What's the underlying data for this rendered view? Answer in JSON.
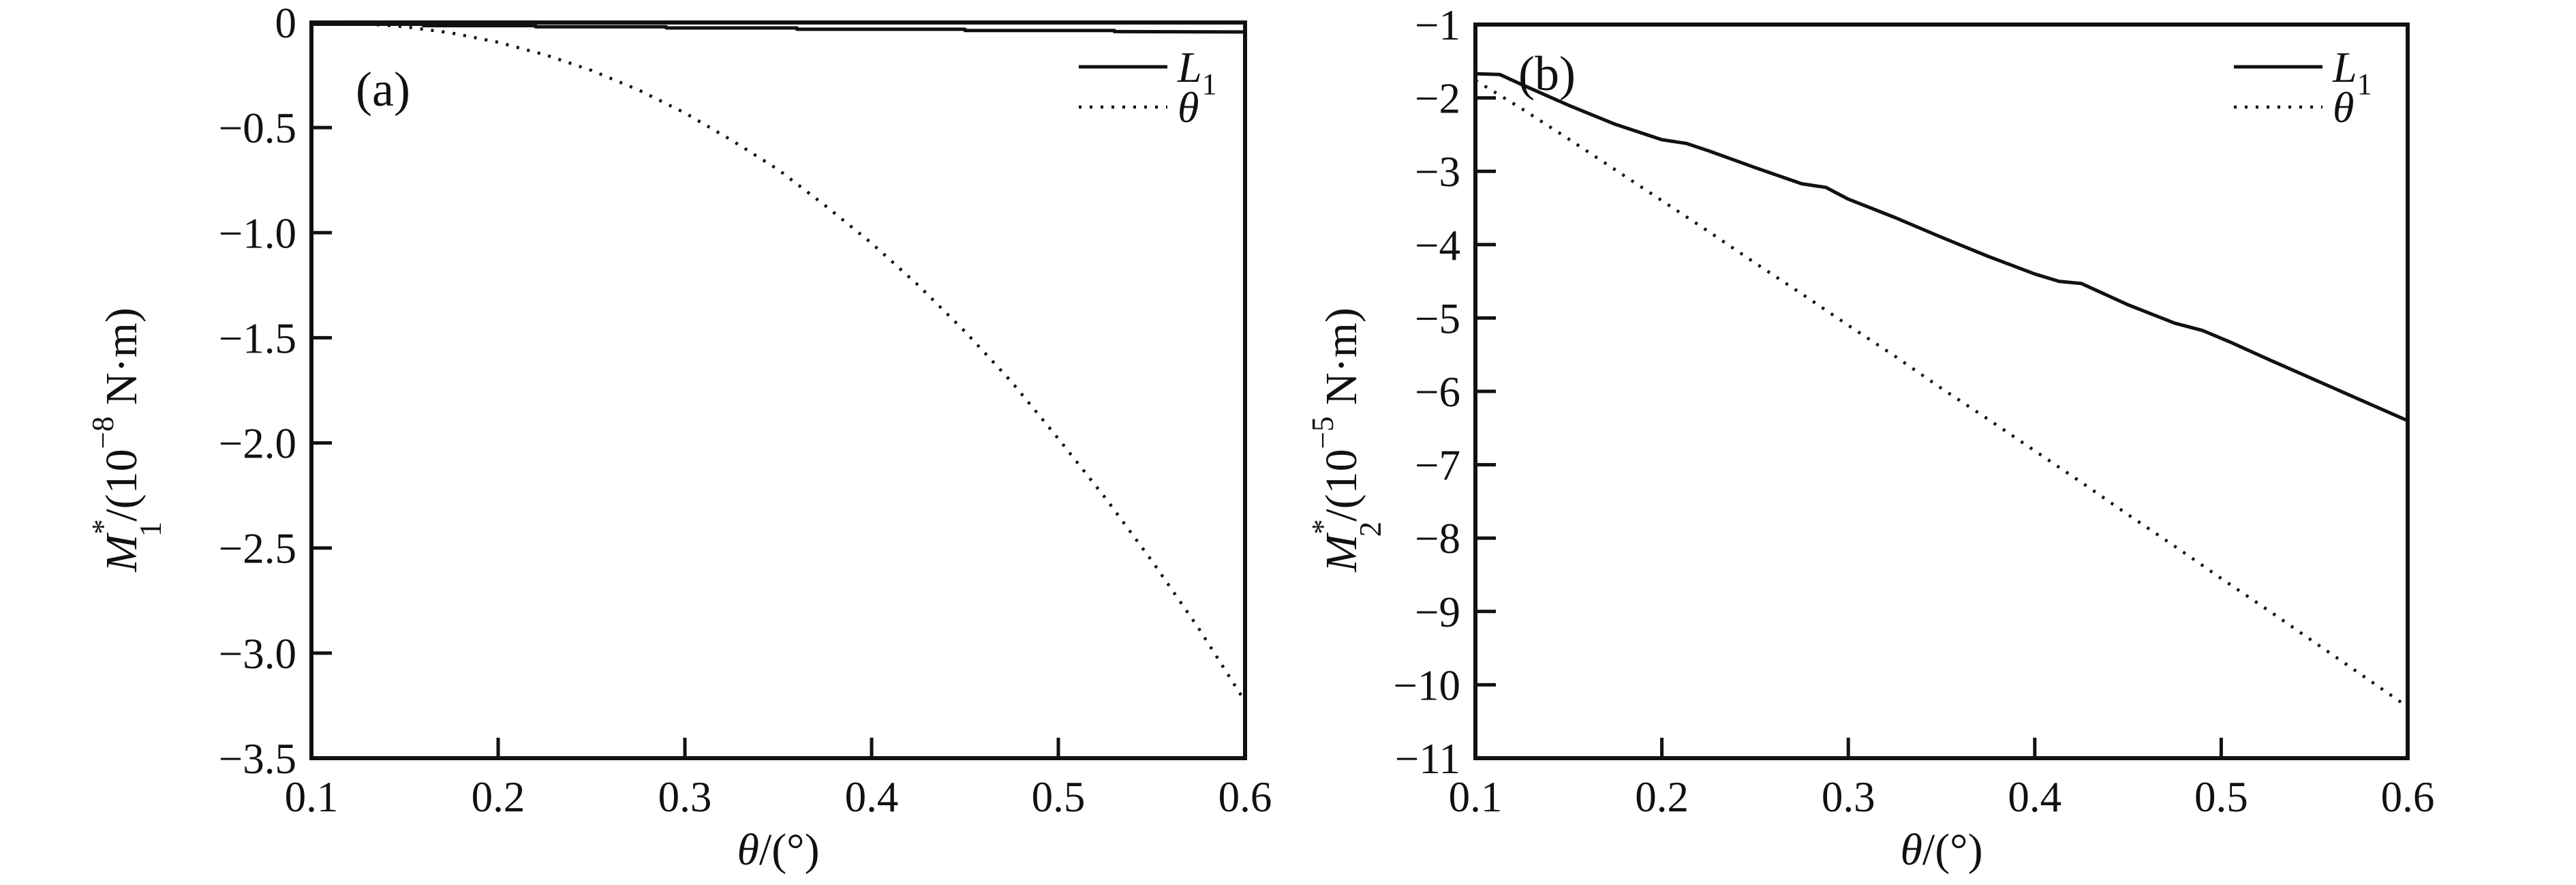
{
  "figure": {
    "background": "#ffffff",
    "ink": "#111111"
  },
  "chart_data": [
    {
      "id": "a",
      "type": "line",
      "panel_label": "(a)",
      "xlim": [
        0.1,
        0.6
      ],
      "ylim": [
        -3.5,
        0
      ],
      "grid": false,
      "legend_position": "top-right-inside",
      "xlabel_segments": [
        {
          "t": "θ",
          "it": 1,
          "role": "base"
        },
        {
          "t": "/(°)",
          "role": "base"
        }
      ],
      "ylabel_segments": [
        {
          "t": "M",
          "it": 1,
          "role": "base"
        },
        {
          "t": "*",
          "role": "sup"
        },
        {
          "t": "1",
          "role": "substack",
          "dx": -26
        },
        {
          "t": "/(10",
          "role": "base"
        },
        {
          "t": "−8",
          "role": "sup"
        },
        {
          "t": " N·m)",
          "role": "base"
        }
      ],
      "xticks": {
        "values": [
          0.1,
          0.2,
          0.3,
          0.4,
          0.5,
          0.6
        ],
        "labels": [
          "0.1",
          "0.2",
          "0.3",
          "0.4",
          "0.5",
          "0.6"
        ]
      },
      "yticks": {
        "values": [
          0,
          -0.5,
          -1.0,
          -1.5,
          -2.0,
          -2.5,
          -3.0,
          -3.5
        ],
        "labels": [
          "0",
          "−0.5",
          "−1.0",
          "−1.5",
          "−2.0",
          "−2.5",
          "−3.0",
          "−3.5"
        ]
      },
      "legend": [
        {
          "name": "L1",
          "style": "solid",
          "label_segments": [
            {
              "t": "L",
              "it": 1,
              "role": "base"
            },
            {
              "t": "1",
              "role": "sub"
            }
          ]
        },
        {
          "name": "theta",
          "style": "dotted",
          "label_segments": [
            {
              "t": "θ",
              "it": 1,
              "role": "base"
            }
          ]
        }
      ],
      "series": [
        {
          "name": "L1",
          "style": "solid",
          "x": [
            0.1,
            0.16,
            0.16,
            0.22,
            0.22,
            0.29,
            0.29,
            0.36,
            0.36,
            0.45,
            0.45,
            0.53,
            0.53,
            0.6
          ],
          "y": [
            -0.008,
            -0.008,
            -0.015,
            -0.015,
            -0.02,
            -0.02,
            -0.026,
            -0.026,
            -0.032,
            -0.032,
            -0.038,
            -0.038,
            -0.043,
            -0.045
          ]
        },
        {
          "name": "theta",
          "style": "dotted",
          "x": [
            0.1,
            0.125,
            0.15,
            0.175,
            0.2,
            0.225,
            0.25,
            0.275,
            0.3,
            0.325,
            0.35,
            0.375,
            0.4,
            0.425,
            0.45,
            0.475,
            0.5,
            0.525,
            0.55,
            0.575,
            0.6
          ],
          "y": [
            -0.002,
            -0.004,
            -0.02,
            -0.05,
            -0.094,
            -0.153,
            -0.228,
            -0.32,
            -0.43,
            -0.56,
            -0.7,
            -0.87,
            -1.05,
            -1.25,
            -1.47,
            -1.71,
            -1.98,
            -2.26,
            -2.56,
            -2.88,
            -3.23
          ]
        }
      ]
    },
    {
      "id": "b",
      "type": "line",
      "panel_label": "(b)",
      "xlim": [
        0.1,
        0.6
      ],
      "ylim": [
        -11,
        -1
      ],
      "grid": false,
      "legend_position": "top-right-inside",
      "xlabel_segments": [
        {
          "t": "θ",
          "it": 1,
          "role": "base"
        },
        {
          "t": "/(°)",
          "role": "base"
        }
      ],
      "ylabel_segments": [
        {
          "t": "M",
          "it": 1,
          "role": "base"
        },
        {
          "t": "*",
          "role": "sup"
        },
        {
          "t": "2",
          "role": "substack",
          "dx": -26
        },
        {
          "t": "/(10",
          "role": "base"
        },
        {
          "t": "−5",
          "role": "sup"
        },
        {
          "t": " N·m)",
          "role": "base"
        }
      ],
      "xticks": {
        "values": [
          0.1,
          0.2,
          0.3,
          0.4,
          0.5,
          0.6
        ],
        "labels": [
          "0.1",
          "0.2",
          "0.3",
          "0.4",
          "0.5",
          "0.6"
        ]
      },
      "yticks": {
        "values": [
          -1,
          -2,
          -3,
          -4,
          -5,
          -6,
          -7,
          -8,
          -9,
          -10,
          -11
        ],
        "labels": [
          "−1",
          "−2",
          "−3",
          "−4",
          "−5",
          "−6",
          "−7",
          "−8",
          "−9",
          "−10",
          "−11"
        ]
      },
      "legend": [
        {
          "name": "L1",
          "style": "solid",
          "label_segments": [
            {
              "t": "L",
              "it": 1,
              "role": "base"
            },
            {
              "t": "1",
              "role": "sub"
            }
          ]
        },
        {
          "name": "theta",
          "style": "dotted",
          "label_segments": [
            {
              "t": "θ",
              "it": 1,
              "role": "base"
            }
          ]
        }
      ],
      "series": [
        {
          "name": "L1",
          "style": "solid",
          "x": [
            0.1,
            0.113,
            0.125,
            0.15,
            0.175,
            0.2,
            0.213,
            0.225,
            0.25,
            0.275,
            0.288,
            0.3,
            0.325,
            0.35,
            0.375,
            0.4,
            0.413,
            0.425,
            0.45,
            0.475,
            0.49,
            0.505,
            0.525,
            0.55,
            0.575,
            0.6
          ],
          "y": [
            -1.67,
            -1.68,
            -1.82,
            -2.1,
            -2.36,
            -2.57,
            -2.62,
            -2.72,
            -2.95,
            -3.17,
            -3.22,
            -3.38,
            -3.63,
            -3.9,
            -4.16,
            -4.4,
            -4.5,
            -4.53,
            -4.82,
            -5.07,
            -5.17,
            -5.33,
            -5.56,
            -5.84,
            -6.12,
            -6.4
          ]
        },
        {
          "name": "theta",
          "style": "dotted",
          "x": [
            0.1,
            0.125,
            0.15,
            0.175,
            0.2,
            0.225,
            0.25,
            0.275,
            0.3,
            0.325,
            0.35,
            0.375,
            0.4,
            0.425,
            0.45,
            0.475,
            0.5,
            0.525,
            0.55,
            0.575,
            0.6
          ],
          "y": [
            -1.76,
            -2.15,
            -2.56,
            -2.98,
            -3.4,
            -3.82,
            -4.25,
            -4.67,
            -5.1,
            -5.52,
            -5.96,
            -6.38,
            -6.81,
            -7.24,
            -7.68,
            -8.11,
            -8.55,
            -8.98,
            -9.42,
            -9.86,
            -10.3
          ]
        }
      ]
    }
  ]
}
